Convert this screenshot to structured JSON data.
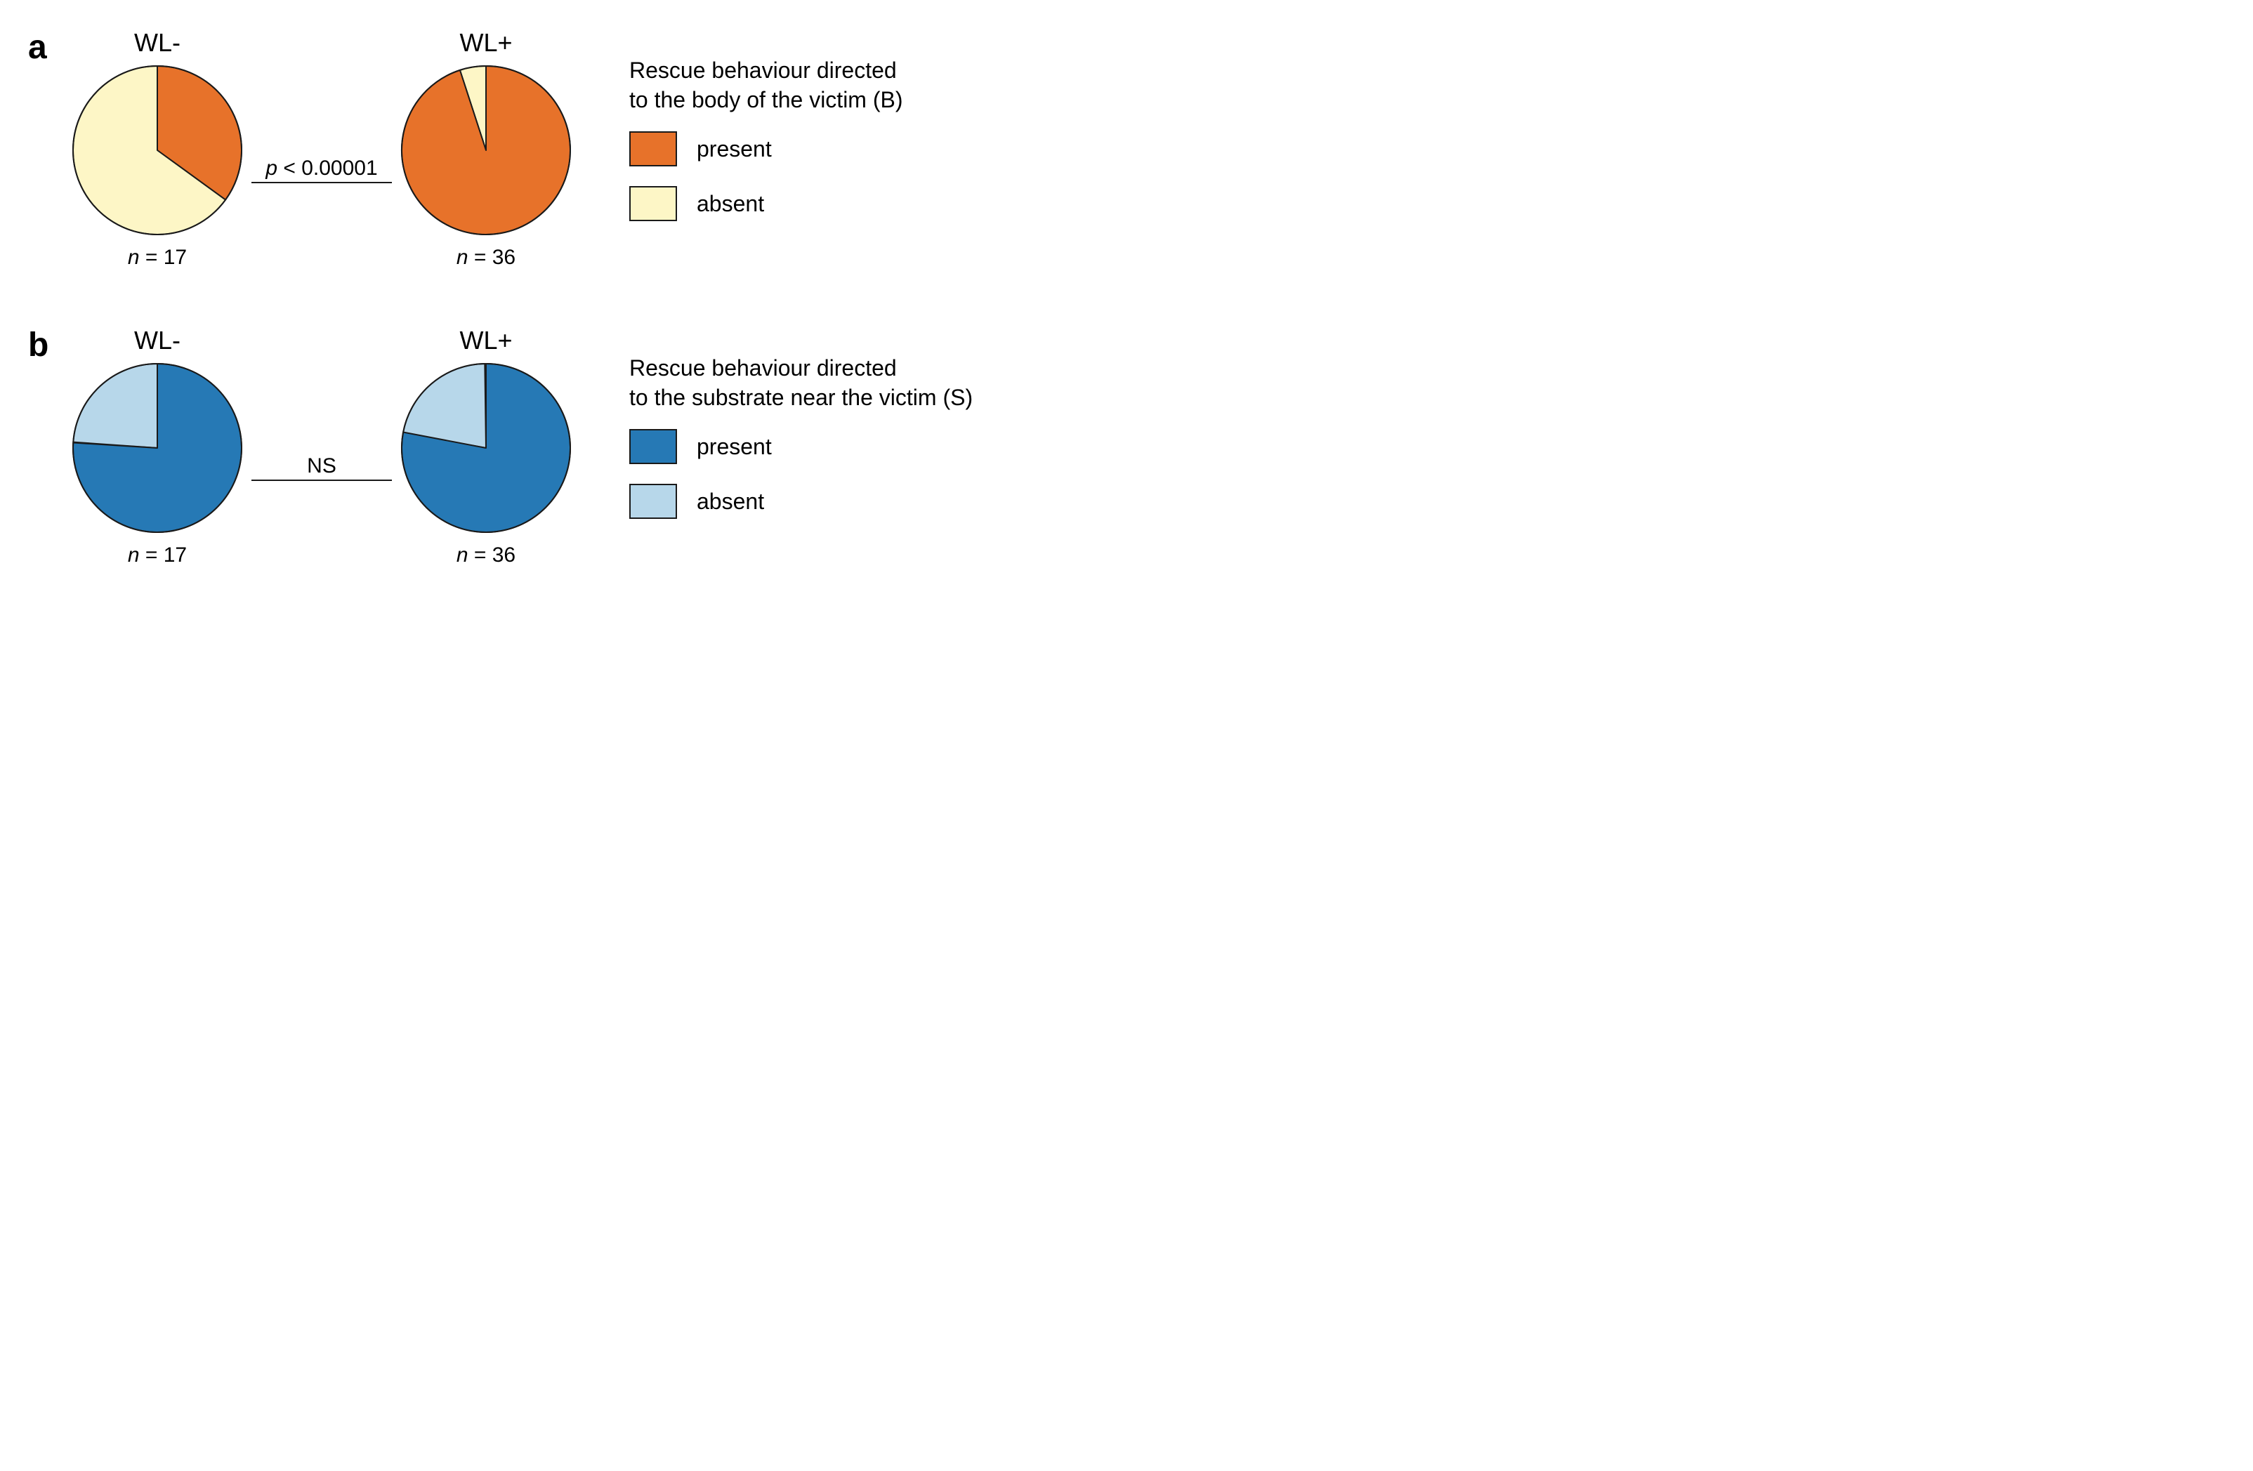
{
  "background_color": "#ffffff",
  "stroke_color": "#1a1a1a",
  "font_family": "Arial",
  "panel_label_fontsize": 48,
  "title_fontsize": 36,
  "nlabel_fontsize": 30,
  "connector_fontsize": 30,
  "legend_title_fontsize": 32,
  "legend_label_fontsize": 32,
  "pie_radius": 120,
  "pie_stroke_width": 2,
  "panels": {
    "a": {
      "label": "a",
      "legend_title": "Rescue behaviour directed\nto the body of the victim (B)",
      "colors": {
        "present": "#e7722a",
        "absent": "#fdf6c6"
      },
      "charts": [
        {
          "title": "WL-",
          "n_text": "n = 17",
          "slices": [
            {
              "key": "present",
              "fraction": 0.35,
              "start_angle_deg": 0
            },
            {
              "key": "absent",
              "fraction": 0.65,
              "start_angle_deg": 126
            }
          ]
        },
        {
          "title": "WL+",
          "n_text": "n = 36",
          "slices": [
            {
              "key": "absent",
              "fraction": 0.05,
              "start_angle_deg": -18
            },
            {
              "key": "present",
              "fraction": 0.95,
              "start_angle_deg": 0
            }
          ]
        }
      ],
      "connector": {
        "label_html": "<span class=\"italic\">p</span> &lt; 0.00001",
        "text": "p < 0.00001"
      },
      "legend_items": [
        {
          "key": "present",
          "label": "present"
        },
        {
          "key": "absent",
          "label": "absent"
        }
      ]
    },
    "b": {
      "label": "b",
      "legend_title": "Rescue behaviour directed\nto the substrate near the victim (S)",
      "colors": {
        "present": "#2679b5",
        "absent": "#b7d7ea"
      },
      "charts": [
        {
          "title": "WL-",
          "n_text": "n = 17",
          "slices": [
            {
              "key": "absent",
              "fraction": 0.24,
              "start_angle_deg": -86
            },
            {
              "key": "present",
              "fraction": 0.76,
              "start_angle_deg": 0
            }
          ]
        },
        {
          "title": "WL+",
          "n_text": "n = 36",
          "slices": [
            {
              "key": "absent",
              "fraction": 0.22,
              "start_angle_deg": -80
            },
            {
              "key": "present",
              "fraction": 0.78,
              "start_angle_deg": 0
            }
          ]
        }
      ],
      "connector": {
        "label_html": "NS",
        "text": "NS"
      },
      "legend_items": [
        {
          "key": "present",
          "label": "present"
        },
        {
          "key": "absent",
          "label": "absent"
        }
      ]
    }
  }
}
